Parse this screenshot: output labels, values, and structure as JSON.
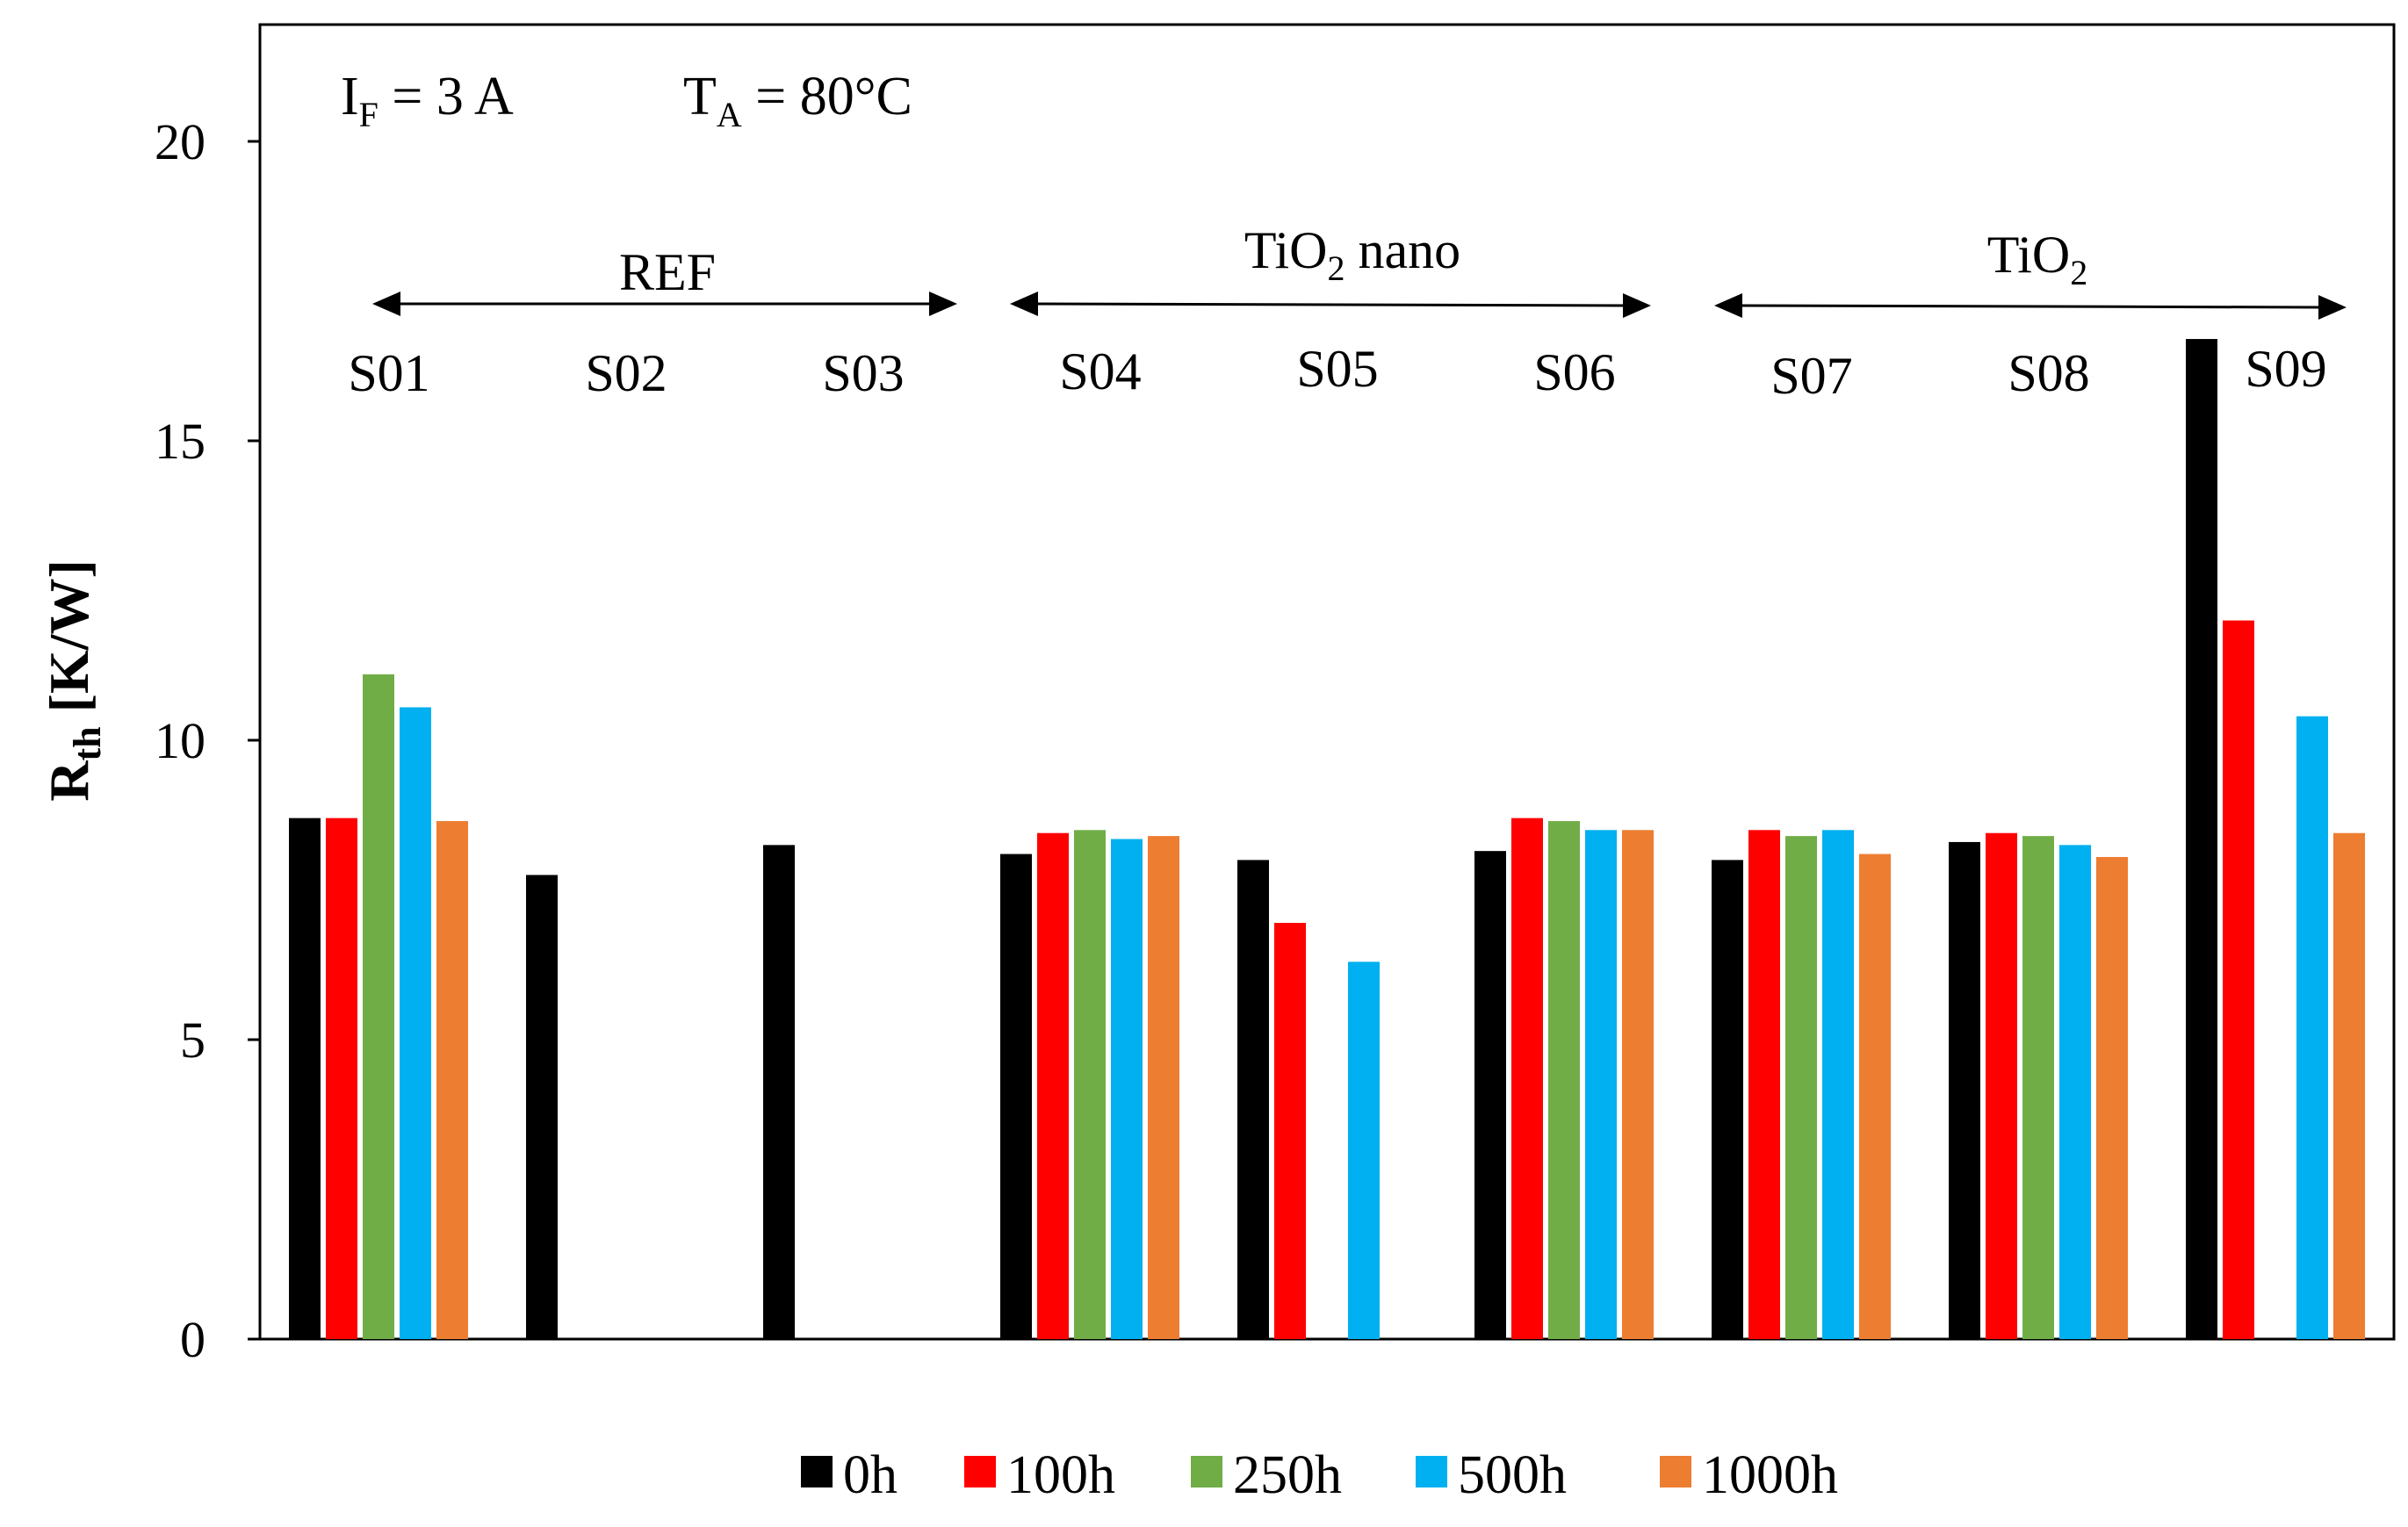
{
  "chart_data": {
    "type": "bar",
    "categories": [
      "S01",
      "S02",
      "S03",
      "S04",
      "S05",
      "S06",
      "S07",
      "S08",
      "S09"
    ],
    "series": [
      {
        "name": "0h",
        "color": "#000000",
        "values": [
          8.7,
          7.75,
          8.25,
          8.1,
          8.0,
          8.15,
          8.0,
          8.3,
          16.7
        ]
      },
      {
        "name": "100h",
        "color": "#ff0000",
        "values": [
          8.7,
          null,
          null,
          8.45,
          6.95,
          8.7,
          8.5,
          8.45,
          12.0
        ]
      },
      {
        "name": "250h",
        "color": "#70ad47",
        "values": [
          11.1,
          null,
          null,
          8.5,
          null,
          8.65,
          8.4,
          8.4,
          null
        ]
      },
      {
        "name": "500h",
        "color": "#00b0f0",
        "values": [
          10.55,
          null,
          null,
          8.35,
          6.3,
          8.5,
          8.5,
          8.25,
          10.4
        ]
      },
      {
        "name": "1000h",
        "color": "#ed7d31",
        "values": [
          8.65,
          null,
          null,
          8.4,
          null,
          8.5,
          8.1,
          8.05,
          8.45
        ]
      }
    ],
    "ylabel": {
      "main": "R",
      "sub": "th",
      "unit": " [K/W]"
    },
    "ylim": [
      0,
      22
    ],
    "yticks": [
      0,
      5,
      10,
      15,
      20
    ],
    "annotation": {
      "if_main": "I",
      "if_sub": "F",
      "if_value": " = 3 A",
      "ta_main": "T",
      "ta_sub": "A",
      "ta_value": " = 80°C"
    },
    "groups": [
      {
        "name": "REF"
      },
      {
        "name_main": "TiO",
        "name_sub": "2",
        "name_rest": " nano"
      },
      {
        "name_main": "TiO",
        "name_sub": "2",
        "name_rest": ""
      }
    ],
    "legend_position": "bottom"
  }
}
